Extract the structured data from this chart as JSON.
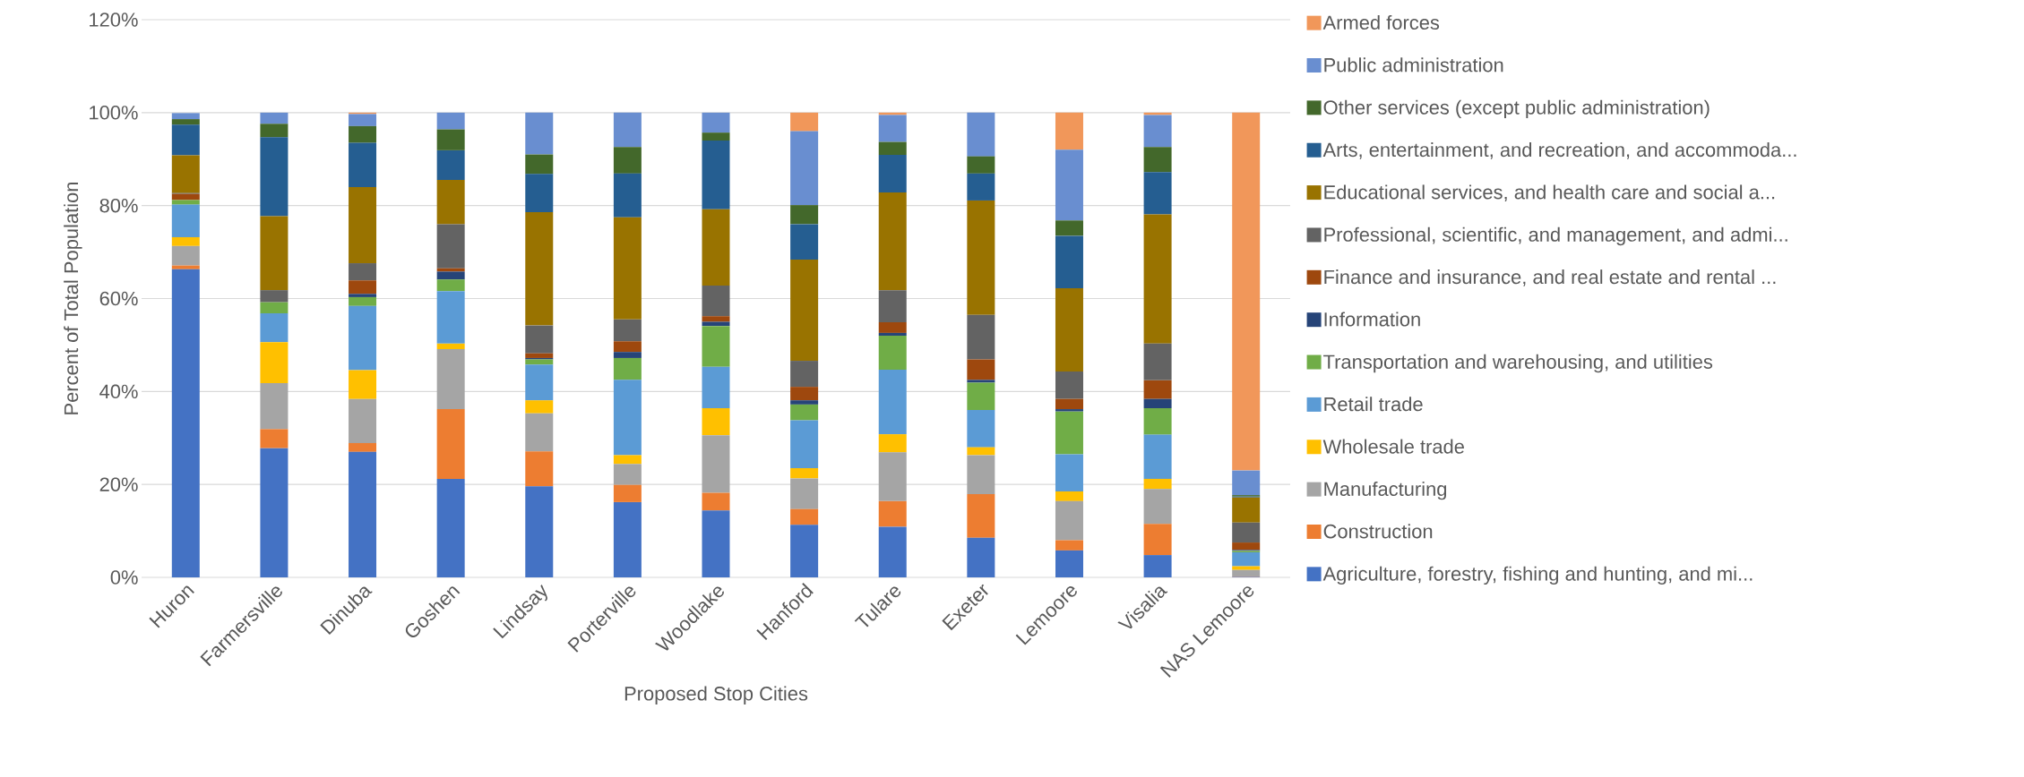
{
  "chart_data": {
    "type": "bar",
    "stacked": true,
    "xlabel": "Proposed Stop Cities",
    "ylabel": "Percent of Total Population",
    "categories": [
      "Huron",
      "Farmersville",
      "Dinuba",
      "Goshen",
      "Lindsay",
      "Porterville",
      "Woodlake",
      "Hanford",
      "Tulare",
      "Exeter",
      "Lemoore",
      "Visalia",
      "NAS Lemoore"
    ],
    "ylim": [
      0,
      120
    ],
    "yticks": [
      {
        "value": 0,
        "label": "0%"
      },
      {
        "value": 20,
        "label": "20%"
      },
      {
        "value": 40,
        "label": "40%"
      },
      {
        "value": 60,
        "label": "60%"
      },
      {
        "value": 80,
        "label": "80%"
      },
      {
        "value": 100,
        "label": "100%"
      },
      {
        "value": 120,
        "label": "120%"
      }
    ],
    "grid": "y",
    "legend": "right",
    "series": [
      {
        "name": "Agriculture, forestry, fishing and hunting, and mi...",
        "color": "#4472c4",
        "values": [
          66.3,
          27.8,
          27.0,
          21.2,
          19.6,
          16.2,
          14.4,
          11.3,
          10.9,
          8.5,
          5.8,
          4.8,
          0.1
        ]
      },
      {
        "name": "Construction",
        "color": "#ed7d31",
        "values": [
          0.8,
          4.1,
          1.9,
          15.0,
          7.5,
          3.7,
          3.8,
          3.4,
          5.5,
          9.4,
          2.2,
          6.7,
          0.1
        ]
      },
      {
        "name": "Manufacturing",
        "color": "#a5a5a5",
        "values": [
          4.2,
          9.9,
          9.5,
          12.9,
          8.2,
          4.5,
          12.4,
          6.6,
          10.5,
          8.4,
          8.4,
          7.5,
          1.4
        ]
      },
      {
        "name": "Wholesale trade",
        "color": "#ffc000",
        "values": [
          1.9,
          8.8,
          6.2,
          1.2,
          2.8,
          1.9,
          5.8,
          2.2,
          3.9,
          1.7,
          2.1,
          2.2,
          0.8
        ]
      },
      {
        "name": "Retail trade",
        "color": "#5b9bd5",
        "values": [
          7.0,
          6.2,
          13.8,
          11.3,
          7.7,
          16.2,
          8.9,
          10.3,
          13.9,
          8.0,
          8.0,
          9.5,
          3.0
        ]
      },
      {
        "name": "Transportation and warehousing, and utilities",
        "color": "#70ad47",
        "values": [
          1.0,
          2.4,
          1.9,
          2.5,
          1.1,
          4.7,
          8.8,
          3.4,
          7.3,
          5.9,
          9.2,
          5.7,
          0.3
        ]
      },
      {
        "name": "Information",
        "color": "#264478",
        "values": [
          null,
          0,
          0.7,
          1.7,
          0.3,
          1.3,
          0.9,
          0.9,
          0.6,
          0.6,
          0.5,
          2.0,
          0.2
        ]
      },
      {
        "name": "Finance and insurance, and real estate and rental ...",
        "color": "#9e480e",
        "values": [
          1.3,
          0,
          2.9,
          0.7,
          1.0,
          2.3,
          1.2,
          2.9,
          2.3,
          4.4,
          2.2,
          4.0,
          1.6
        ]
      },
      {
        "name": "Professional, scientific, and management, and admi...",
        "color": "#636363",
        "values": [
          0.2,
          2.6,
          3.7,
          9.5,
          6.0,
          4.7,
          6.6,
          5.6,
          6.9,
          9.6,
          5.9,
          7.9,
          4.3
        ]
      },
      {
        "name": "Educational services, and health care and social a...",
        "color": "#997300",
        "values": [
          8.1,
          15.9,
          16.4,
          9.5,
          24.4,
          22.0,
          16.4,
          21.8,
          21.0,
          24.6,
          17.9,
          27.8,
          5.4
        ]
      },
      {
        "name": "Arts, entertainment, and recreation, and accommoda...",
        "color": "#255e91",
        "values": [
          6.6,
          17.0,
          9.5,
          6.4,
          8.2,
          9.4,
          14.8,
          7.6,
          8.1,
          5.8,
          11.3,
          9.1,
          0.2
        ]
      },
      {
        "name": "Other services (except public administration)",
        "color": "#43682b",
        "values": [
          1.2,
          2.9,
          3.6,
          4.5,
          4.2,
          5.7,
          1.7,
          4.1,
          2.8,
          3.7,
          3.3,
          5.4,
          0.3
        ]
      },
      {
        "name": "Public administration",
        "color": "#698ed0",
        "values": [
          1.3,
          2.4,
          2.6,
          3.6,
          9.0,
          7.4,
          4.3,
          15.9,
          5.8,
          9.4,
          15.2,
          6.9,
          5.3
        ]
      },
      {
        "name": "Armed forces",
        "color": "#f1975a",
        "values": [
          0,
          0,
          0.3,
          0,
          0,
          0,
          0,
          4.0,
          0.5,
          0,
          8.0,
          0.5,
          77.0
        ]
      }
    ]
  }
}
